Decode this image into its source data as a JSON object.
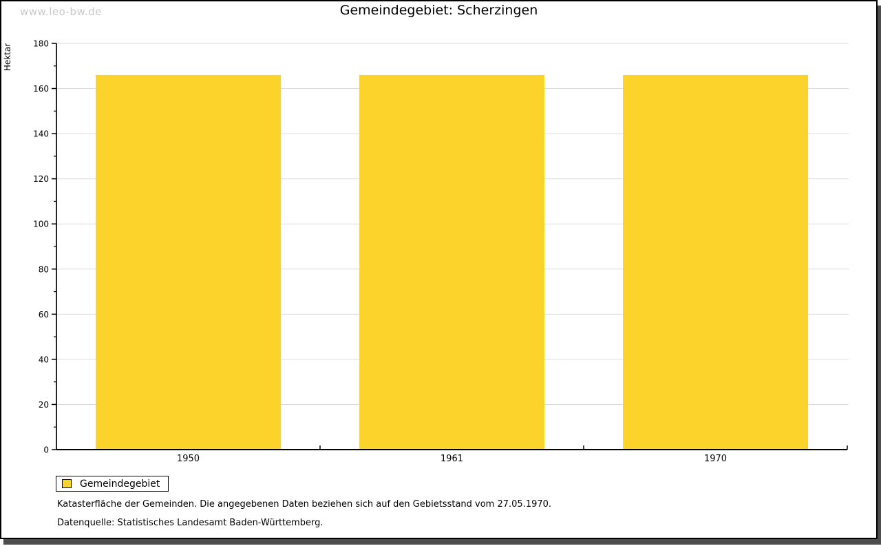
{
  "page": {
    "watermark": "www.leo-bw.de",
    "title": "Gemeindegebiet: Scherzingen",
    "footnote_1": "Katasterfläche der Gemeinden. Die angegebenen Daten beziehen sich auf den Gebietsstand vom 27.05.1970.",
    "footnote_2": "Datenquelle: Statistisches Landesamt Baden-Württemberg."
  },
  "legend": {
    "label": "Gemeindegebiet"
  },
  "chart_data": {
    "type": "bar",
    "title": "Gemeindegebiet: Scherzingen",
    "categories": [
      "1950",
      "1961",
      "1970"
    ],
    "series": [
      {
        "name": "Gemeindegebiet",
        "color": "#FCD32B",
        "values": [
          166,
          166,
          166
        ]
      }
    ],
    "xlabel": "",
    "ylabel": "Hektar",
    "unit": "Hektar",
    "ylim": [
      0,
      180
    ],
    "ytick_major": 20,
    "ytick_minor": 10,
    "grid": true,
    "legend_position": "bottom-left"
  },
  "colors": {
    "bar": "#FCD32B",
    "grid": "#dcdcdc",
    "axis": "#000000",
    "shadow": "#4d4d4d",
    "watermark": "#c9c9c9"
  }
}
